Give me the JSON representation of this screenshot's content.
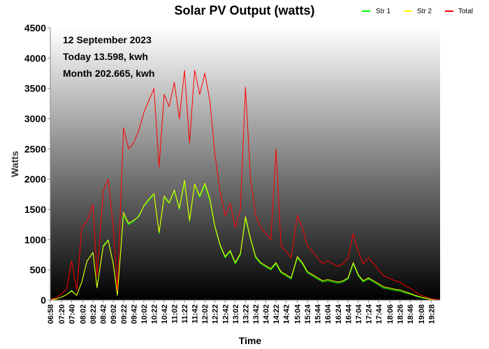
{
  "chart_data": {
    "type": "line",
    "title": "Solar PV Output (watts)",
    "xlabel": "Time",
    "ylabel": "Watts",
    "ylim": [
      0,
      4500
    ],
    "yticks": [
      0,
      500,
      1000,
      1500,
      2000,
      2500,
      3000,
      3500,
      4000,
      4500
    ],
    "x_start": "06:58",
    "x_end": "19:45",
    "x_tick_labels": [
      "06:58",
      "07:20",
      "07:40",
      "08:02",
      "08:22",
      "08:42",
      "09:02",
      "09:22",
      "09:42",
      "10:02",
      "10:22",
      "10:42",
      "11:02",
      "11:22",
      "11:42",
      "12:02",
      "12:22",
      "12:42",
      "13:02",
      "13:22",
      "13:42",
      "14:02",
      "14:22",
      "14:42",
      "15:04",
      "15:24",
      "15:44",
      "16:04",
      "16:24",
      "16:44",
      "17:04",
      "17:24",
      "17:44",
      "18:06",
      "18:26",
      "18:46",
      "19:08",
      "19:28"
    ],
    "annotations": [
      "12 September 2023",
      "Today 13.598, kwh",
      "Month 202.665, kwh"
    ],
    "legend_position": "top-right",
    "grid": false,
    "background": "gradient white-to-black",
    "series": [
      {
        "name": "Str 1",
        "color": "#00ff00",
        "points": [
          [
            "06:58",
            5
          ],
          [
            "07:10",
            20
          ],
          [
            "07:20",
            50
          ],
          [
            "07:30",
            90
          ],
          [
            "07:40",
            160
          ],
          [
            "07:50",
            80
          ],
          [
            "08:00",
            300
          ],
          [
            "08:10",
            650
          ],
          [
            "08:22",
            780
          ],
          [
            "08:30",
            200
          ],
          [
            "08:42",
            900
          ],
          [
            "08:52",
            1000
          ],
          [
            "09:02",
            600
          ],
          [
            "09:10",
            80
          ],
          [
            "09:22",
            1400
          ],
          [
            "09:32",
            1250
          ],
          [
            "09:42",
            1300
          ],
          [
            "09:52",
            1400
          ],
          [
            "10:02",
            1550
          ],
          [
            "10:12",
            1650
          ],
          [
            "10:22",
            1750
          ],
          [
            "10:32",
            1100
          ],
          [
            "10:42",
            1700
          ],
          [
            "10:52",
            1600
          ],
          [
            "11:02",
            1800
          ],
          [
            "11:12",
            1500
          ],
          [
            "11:22",
            1950
          ],
          [
            "11:32",
            1300
          ],
          [
            "11:42",
            1900
          ],
          [
            "11:52",
            1700
          ],
          [
            "12:02",
            1900
          ],
          [
            "12:12",
            1650
          ],
          [
            "12:22",
            1200
          ],
          [
            "12:32",
            900
          ],
          [
            "12:42",
            700
          ],
          [
            "12:52",
            800
          ],
          [
            "13:02",
            600
          ],
          [
            "13:12",
            750
          ],
          [
            "13:22",
            1350
          ],
          [
            "13:32",
            1000
          ],
          [
            "13:42",
            700
          ],
          [
            "13:52",
            600
          ],
          [
            "14:02",
            550
          ],
          [
            "14:12",
            500
          ],
          [
            "14:22",
            600
          ],
          [
            "14:32",
            450
          ],
          [
            "14:42",
            400
          ],
          [
            "14:52",
            350
          ],
          [
            "15:04",
            700
          ],
          [
            "15:14",
            600
          ],
          [
            "15:24",
            450
          ],
          [
            "15:34",
            400
          ],
          [
            "15:44",
            350
          ],
          [
            "15:54",
            300
          ],
          [
            "16:04",
            320
          ],
          [
            "16:14",
            300
          ],
          [
            "16:24",
            280
          ],
          [
            "16:34",
            300
          ],
          [
            "16:44",
            350
          ],
          [
            "16:54",
            600
          ],
          [
            "17:04",
            400
          ],
          [
            "17:14",
            300
          ],
          [
            "17:24",
            350
          ],
          [
            "17:34",
            300
          ],
          [
            "17:44",
            250
          ],
          [
            "17:54",
            200
          ],
          [
            "18:06",
            180
          ],
          [
            "18:16",
            160
          ],
          [
            "18:26",
            150
          ],
          [
            "18:36",
            120
          ],
          [
            "18:46",
            100
          ],
          [
            "18:56",
            70
          ],
          [
            "19:08",
            40
          ],
          [
            "19:18",
            25
          ],
          [
            "19:28",
            10
          ],
          [
            "19:45",
            2
          ]
        ]
      },
      {
        "name": "Str 2",
        "color": "#ffff00",
        "points": [
          [
            "06:58",
            5
          ],
          [
            "07:10",
            20
          ],
          [
            "07:20",
            50
          ],
          [
            "07:30",
            90
          ],
          [
            "07:40",
            150
          ],
          [
            "07:50",
            80
          ],
          [
            "08:00",
            300
          ],
          [
            "08:10",
            640
          ],
          [
            "08:22",
            790
          ],
          [
            "08:30",
            210
          ],
          [
            "08:42",
            880
          ],
          [
            "08:52",
            990
          ],
          [
            "09:02",
            590
          ],
          [
            "09:10",
            80
          ],
          [
            "09:22",
            1450
          ],
          [
            "09:32",
            1270
          ],
          [
            "09:42",
            1320
          ],
          [
            "09:52",
            1380
          ],
          [
            "10:02",
            1560
          ],
          [
            "10:12",
            1670
          ],
          [
            "10:22",
            1760
          ],
          [
            "10:32",
            1120
          ],
          [
            "10:42",
            1720
          ],
          [
            "10:52",
            1610
          ],
          [
            "11:02",
            1820
          ],
          [
            "11:12",
            1520
          ],
          [
            "11:22",
            1980
          ],
          [
            "11:32",
            1320
          ],
          [
            "11:42",
            1920
          ],
          [
            "11:52",
            1720
          ],
          [
            "12:02",
            1930
          ],
          [
            "12:12",
            1680
          ],
          [
            "12:22",
            1220
          ],
          [
            "12:32",
            920
          ],
          [
            "12:42",
            720
          ],
          [
            "12:52",
            820
          ],
          [
            "13:02",
            620
          ],
          [
            "13:12",
            770
          ],
          [
            "13:22",
            1380
          ],
          [
            "13:32",
            1020
          ],
          [
            "13:42",
            720
          ],
          [
            "13:52",
            620
          ],
          [
            "14:02",
            570
          ],
          [
            "14:12",
            520
          ],
          [
            "14:22",
            620
          ],
          [
            "14:32",
            470
          ],
          [
            "14:42",
            420
          ],
          [
            "14:52",
            370
          ],
          [
            "15:04",
            720
          ],
          [
            "15:14",
            620
          ],
          [
            "15:24",
            470
          ],
          [
            "15:34",
            420
          ],
          [
            "15:44",
            370
          ],
          [
            "15:54",
            320
          ],
          [
            "16:04",
            340
          ],
          [
            "16:14",
            320
          ],
          [
            "16:24",
            300
          ],
          [
            "16:34",
            320
          ],
          [
            "16:44",
            370
          ],
          [
            "16:54",
            620
          ],
          [
            "17:04",
            420
          ],
          [
            "17:14",
            320
          ],
          [
            "17:24",
            370
          ],
          [
            "17:34",
            320
          ],
          [
            "17:44",
            270
          ],
          [
            "17:54",
            220
          ],
          [
            "18:06",
            200
          ],
          [
            "18:16",
            180
          ],
          [
            "18:26",
            170
          ],
          [
            "18:36",
            140
          ],
          [
            "18:46",
            110
          ],
          [
            "18:56",
            80
          ],
          [
            "19:08",
            50
          ],
          [
            "19:18",
            30
          ],
          [
            "19:28",
            12
          ],
          [
            "19:45",
            3
          ]
        ]
      },
      {
        "name": "Total",
        "color": "#ff0000",
        "points": [
          [
            "06:58",
            10
          ],
          [
            "07:10",
            40
          ],
          [
            "07:20",
            100
          ],
          [
            "07:30",
            180
          ],
          [
            "07:40",
            650
          ],
          [
            "07:50",
            160
          ],
          [
            "08:00",
            1200
          ],
          [
            "08:10",
            1300
          ],
          [
            "08:22",
            1580
          ],
          [
            "08:30",
            400
          ],
          [
            "08:42",
            1800
          ],
          [
            "08:52",
            2000
          ],
          [
            "09:02",
            1200
          ],
          [
            "09:10",
            160
          ],
          [
            "09:22",
            2850
          ],
          [
            "09:32",
            2500
          ],
          [
            "09:42",
            2600
          ],
          [
            "09:52",
            2800
          ],
          [
            "10:02",
            3100
          ],
          [
            "10:12",
            3300
          ],
          [
            "10:22",
            3500
          ],
          [
            "10:32",
            2200
          ],
          [
            "10:42",
            3400
          ],
          [
            "10:52",
            3200
          ],
          [
            "11:02",
            3600
          ],
          [
            "11:12",
            3000
          ],
          [
            "11:22",
            3800
          ],
          [
            "11:32",
            2600
          ],
          [
            "11:42",
            3800
          ],
          [
            "11:52",
            3400
          ],
          [
            "12:02",
            3750
          ],
          [
            "12:12",
            3300
          ],
          [
            "12:22",
            2400
          ],
          [
            "12:32",
            1800
          ],
          [
            "12:42",
            1400
          ],
          [
            "12:52",
            1600
          ],
          [
            "13:02",
            1200
          ],
          [
            "13:12",
            1500
          ],
          [
            "13:22",
            3520
          ],
          [
            "13:32",
            2000
          ],
          [
            "13:42",
            1400
          ],
          [
            "13:52",
            1200
          ],
          [
            "14:02",
            1100
          ],
          [
            "14:12",
            1000
          ],
          [
            "14:22",
            2500
          ],
          [
            "14:32",
            900
          ],
          [
            "14:42",
            800
          ],
          [
            "14:52",
            700
          ],
          [
            "15:04",
            1400
          ],
          [
            "15:14",
            1200
          ],
          [
            "15:24",
            900
          ],
          [
            "15:34",
            800
          ],
          [
            "15:44",
            700
          ],
          [
            "15:54",
            600
          ],
          [
            "16:04",
            650
          ],
          [
            "16:14",
            600
          ],
          [
            "16:24",
            560
          ],
          [
            "16:34",
            600
          ],
          [
            "16:44",
            700
          ],
          [
            "16:54",
            1100
          ],
          [
            "17:04",
            800
          ],
          [
            "17:14",
            600
          ],
          [
            "17:24",
            700
          ],
          [
            "17:34",
            600
          ],
          [
            "17:44",
            500
          ],
          [
            "17:54",
            400
          ],
          [
            "18:06",
            360
          ],
          [
            "18:16",
            320
          ],
          [
            "18:26",
            300
          ],
          [
            "18:36",
            240
          ],
          [
            "18:46",
            200
          ],
          [
            "18:56",
            140
          ],
          [
            "19:08",
            80
          ],
          [
            "19:18",
            50
          ],
          [
            "19:28",
            20
          ],
          [
            "19:45",
            5
          ]
        ]
      }
    ]
  }
}
